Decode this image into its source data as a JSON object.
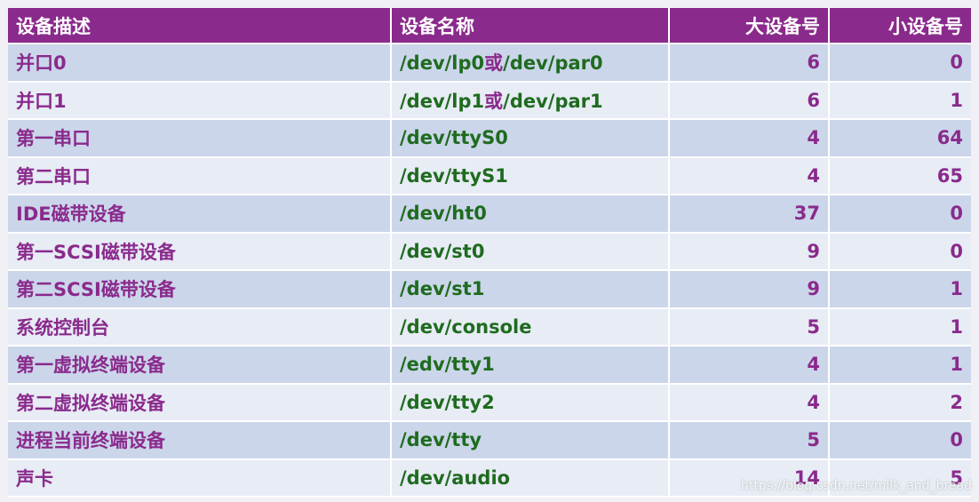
{
  "table": {
    "headers": {
      "description": "设备描述",
      "name": "设备名称",
      "major": "大设备号",
      "minor": "小设备号"
    },
    "rows": [
      {
        "description": "并口0",
        "name_a": "/dev/lp0",
        "name_sep": "或",
        "name_b": "/dev/par0",
        "major": "6",
        "minor": "0"
      },
      {
        "description": "并口1",
        "name_a": "/dev/lp1",
        "name_sep": "或",
        "name_b": "/dev/par1",
        "major": "6",
        "minor": "1"
      },
      {
        "description": "第一串口",
        "name_a": "/dev/ttyS0",
        "name_sep": "",
        "name_b": "",
        "major": "4",
        "minor": "64"
      },
      {
        "description": "第二串口",
        "name_a": "/dev/ttyS1",
        "name_sep": "",
        "name_b": "",
        "major": "4",
        "minor": "65"
      },
      {
        "description": "IDE磁带设备",
        "name_a": "/dev/ht0",
        "name_sep": "",
        "name_b": "",
        "major": "37",
        "minor": "0"
      },
      {
        "description": "第一SCSI磁带设备",
        "name_a": "/dev/st0",
        "name_sep": "",
        "name_b": "",
        "major": "9",
        "minor": "0"
      },
      {
        "description": "第二SCSI磁带设备",
        "name_a": "/dev/st1",
        "name_sep": "",
        "name_b": "",
        "major": "9",
        "minor": "1"
      },
      {
        "description": "系统控制台",
        "name_a": "/dev/console",
        "name_sep": "",
        "name_b": "",
        "major": "5",
        "minor": "1"
      },
      {
        "description": "第一虚拟终端设备",
        "name_a": "/edv/tty1",
        "name_sep": "",
        "name_b": "",
        "major": "4",
        "minor": "1"
      },
      {
        "description": "第二虚拟终端设备",
        "name_a": "/dev/tty2",
        "name_sep": "",
        "name_b": "",
        "major": "4",
        "minor": "2"
      },
      {
        "description": "进程当前终端设备",
        "name_a": "/dev/tty",
        "name_sep": "",
        "name_b": "",
        "major": "5",
        "minor": "0"
      },
      {
        "description": "声卡",
        "name_a": "/dev/audio",
        "name_sep": "",
        "name_b": "",
        "major": "14",
        "minor": "5"
      }
    ]
  },
  "watermark": "https://blog.csdn.net/milk_and_bread",
  "colors": {
    "header_bg": "#8a2a8c",
    "description_text": "#8a2a8c",
    "name_text": "#1f6b1f",
    "row_odd": "#cbd6ea",
    "row_even": "#e7ecf5"
  }
}
